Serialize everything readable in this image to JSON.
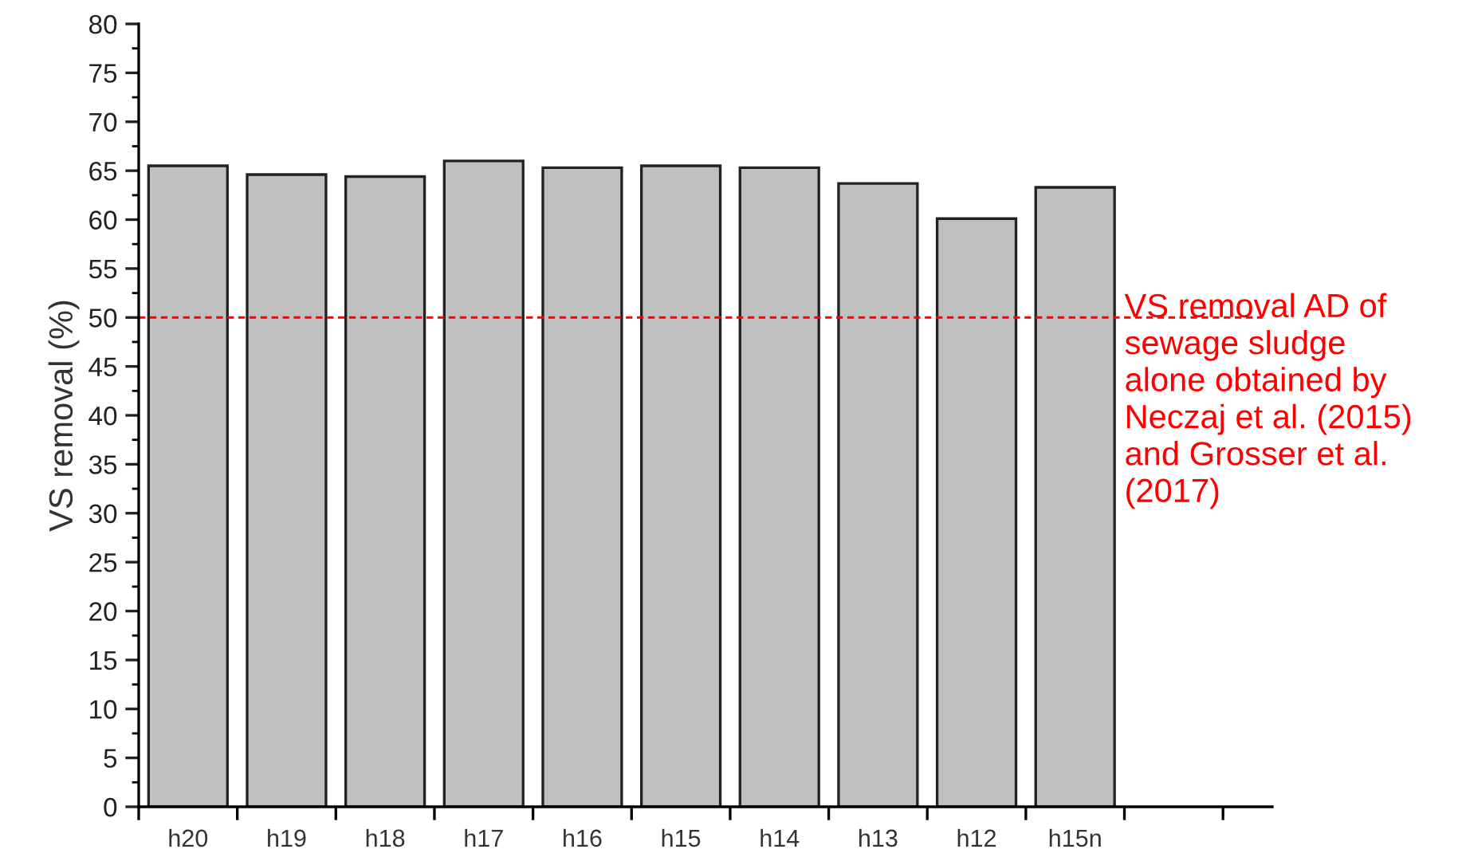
{
  "chart_data": {
    "type": "bar",
    "ylabel": "VS removal (%)",
    "categories": [
      "h20",
      "h19",
      "h18",
      "h17",
      "h16",
      "h15",
      "h14",
      "h13",
      "h12",
      "h15n",
      null,
      null
    ],
    "values": [
      65.5,
      64.6,
      64.4,
      66.0,
      65.3,
      65.5,
      65.3,
      63.7,
      60.1,
      63.3,
      null,
      null
    ],
    "color": "#c0c0c0",
    "ylim": [
      0,
      80
    ],
    "yticks": [
      0,
      5,
      10,
      15,
      20,
      25,
      30,
      35,
      40,
      45,
      50,
      55,
      60,
      65,
      70,
      75,
      80
    ],
    "grid": false,
    "legend": false,
    "ref_lines": [
      {
        "axis": "y",
        "value": 50,
        "label": "VS removal AD of\nsewage sludge\nalone obtained by\nNeczaj et al. (2015)\nand Grosser et al.\n(2017)",
        "color": "#ff0000",
        "line_style": "dashed"
      }
    ]
  }
}
